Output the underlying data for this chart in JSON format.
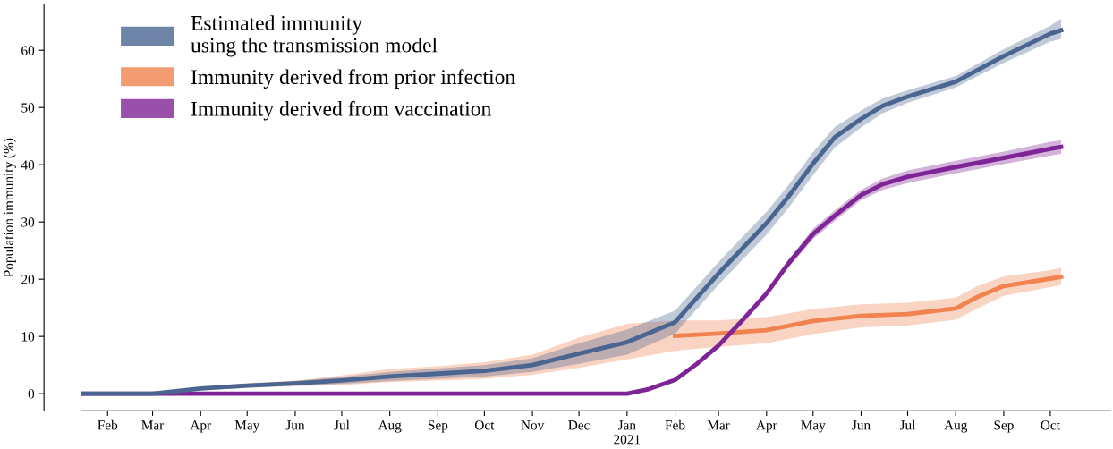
{
  "chart_data": {
    "type": "line",
    "ylabel": "Population immunity (%)",
    "xlim": [
      "2020-01-15",
      "2021-11-09"
    ],
    "ylim": [
      -3,
      68
    ],
    "yticks": [
      0,
      10,
      20,
      30,
      40,
      50,
      60
    ],
    "xticks": [
      {
        "value": "2020-02-01",
        "label": "Feb"
      },
      {
        "value": "2020-03-01",
        "label": "Mar"
      },
      {
        "value": "2020-04-01",
        "label": "Apr"
      },
      {
        "value": "2020-05-01",
        "label": "May"
      },
      {
        "value": "2020-06-01",
        "label": "Jun"
      },
      {
        "value": "2020-07-01",
        "label": "Jul"
      },
      {
        "value": "2020-08-01",
        "label": "Aug"
      },
      {
        "value": "2020-09-01",
        "label": "Sep"
      },
      {
        "value": "2020-10-01",
        "label": "Oct"
      },
      {
        "value": "2020-11-01",
        "label": "Nov"
      },
      {
        "value": "2020-12-01",
        "label": "Dec"
      },
      {
        "value": "2021-01-01",
        "label": "Jan\n2021"
      },
      {
        "value": "2021-02-01",
        "label": "Feb"
      },
      {
        "value": "2021-03-01",
        "label": "Mar"
      },
      {
        "value": "2021-04-01",
        "label": "Apr"
      },
      {
        "value": "2021-05-01",
        "label": "May"
      },
      {
        "value": "2021-06-01",
        "label": "Jun"
      },
      {
        "value": "2021-07-01",
        "label": "Jul"
      },
      {
        "value": "2021-08-01",
        "label": "Aug"
      },
      {
        "value": "2021-09-01",
        "label": "Sep"
      },
      {
        "value": "2021-10-01",
        "label": "Oct"
      }
    ],
    "grid": false,
    "legend": "top left",
    "marker": "none",
    "line_style": "solid",
    "series": [
      {
        "name": "Immunity derived from prior infection",
        "color": "#f0834f",
        "x": [
          "2020-01-16",
          "2020-03-01",
          "2020-04-01",
          "2020-05-01",
          "2020-06-01",
          "2020-07-01",
          "2020-08-01",
          "2020-09-01",
          "2020-10-01",
          "2020-11-01",
          "2020-12-01",
          "2021-01-01",
          "2021-02-01",
          "2021-03-01",
          "2021-04-01",
          "2021-05-01",
          "2021-06-01",
          "2021-07-01",
          "2021-08-01",
          "2021-08-15",
          "2021-09-01",
          "2021-10-01",
          "2021-10-08"
        ],
        "values": [
          null,
          null,
          null,
          null,
          null,
          null,
          null,
          null,
          null,
          null,
          null,
          null,
          10.1,
          10.5,
          11.1,
          12.7,
          13.6,
          13.9,
          14.9,
          16.9,
          18.8,
          20.1,
          20.4
        ],
        "lower": [
          0,
          0,
          0.6,
          1.0,
          1.3,
          1.5,
          2.0,
          2.3,
          2.6,
          3.3,
          4.5,
          6.0,
          7.5,
          8.2,
          8.8,
          10.4,
          11.6,
          11.9,
          12.9,
          14.9,
          17.1,
          18.6,
          19.0
        ],
        "upper": [
          0,
          0,
          1.2,
          1.8,
          2.3,
          3.2,
          4.3,
          4.8,
          5.5,
          6.8,
          9.8,
          12.2,
          12.8,
          12.8,
          13.4,
          14.8,
          15.6,
          15.9,
          16.8,
          18.8,
          20.5,
          21.6,
          22.0
        ]
      },
      {
        "name": "Immunity derived from vaccination",
        "color": "#7f2496",
        "x": [
          "2020-01-16",
          "2021-01-01",
          "2021-01-15",
          "2021-02-01",
          "2021-02-15",
          "2021-03-01",
          "2021-03-15",
          "2021-04-01",
          "2021-04-15",
          "2021-05-01",
          "2021-05-15",
          "2021-06-01",
          "2021-06-15",
          "2021-07-01",
          "2021-08-01",
          "2021-09-01",
          "2021-10-01",
          "2021-10-08"
        ],
        "values": [
          0,
          0,
          0.8,
          2.4,
          5.2,
          8.4,
          12.4,
          17.5,
          22.7,
          27.9,
          31.1,
          34.7,
          36.6,
          37.9,
          39.6,
          41.2,
          42.8,
          43.1
        ],
        "lower": [
          0,
          0,
          0.8,
          2.4,
          5.2,
          8.2,
          12.0,
          17.0,
          22.0,
          27.0,
          30.2,
          33.8,
          35.6,
          36.8,
          38.5,
          40.1,
          41.6,
          41.9
        ],
        "upper": [
          0,
          0,
          0.8,
          2.4,
          5.2,
          8.6,
          12.8,
          18.0,
          23.4,
          28.8,
          32.0,
          35.6,
          37.6,
          39.0,
          40.7,
          42.3,
          44.0,
          44.3
        ]
      },
      {
        "name": "Estimated immunity\nusing the transmission model",
        "color": "#4a6590",
        "x": [
          "2020-01-16",
          "2020-03-01",
          "2020-04-01",
          "2020-05-01",
          "2020-06-01",
          "2020-07-01",
          "2020-08-01",
          "2020-09-01",
          "2020-10-01",
          "2020-11-01",
          "2020-12-01",
          "2021-01-01",
          "2021-02-01",
          "2021-03-01",
          "2021-04-01",
          "2021-04-15",
          "2021-05-01",
          "2021-05-15",
          "2021-06-01",
          "2021-06-15",
          "2021-07-01",
          "2021-08-01",
          "2021-09-01",
          "2021-10-01",
          "2021-10-08"
        ],
        "values": [
          0,
          0,
          0.9,
          1.4,
          1.8,
          2.3,
          3.0,
          3.5,
          4.0,
          5.0,
          7.0,
          9.0,
          12.5,
          21,
          29.8,
          34.4,
          40.2,
          44.8,
          48,
          50.3,
          51.9,
          54.5,
          59,
          62.9,
          63.5
        ],
        "lower": [
          0,
          0,
          0.7,
          1.1,
          1.4,
          1.7,
          2.2,
          2.6,
          3.0,
          3.8,
          5.2,
          6.8,
          10.5,
          19,
          27.8,
          32.4,
          38.2,
          43,
          46.5,
          49,
          50.8,
          53.5,
          57.8,
          61.5,
          62
        ],
        "upper": [
          0,
          0,
          1.1,
          1.7,
          2.2,
          2.9,
          3.8,
          4.4,
          5.0,
          6.2,
          8.8,
          11.2,
          14.5,
          23,
          31.8,
          36.4,
          42.2,
          46.6,
          49.5,
          51.6,
          53,
          55.5,
          60.2,
          64.3,
          65.5
        ]
      }
    ]
  }
}
